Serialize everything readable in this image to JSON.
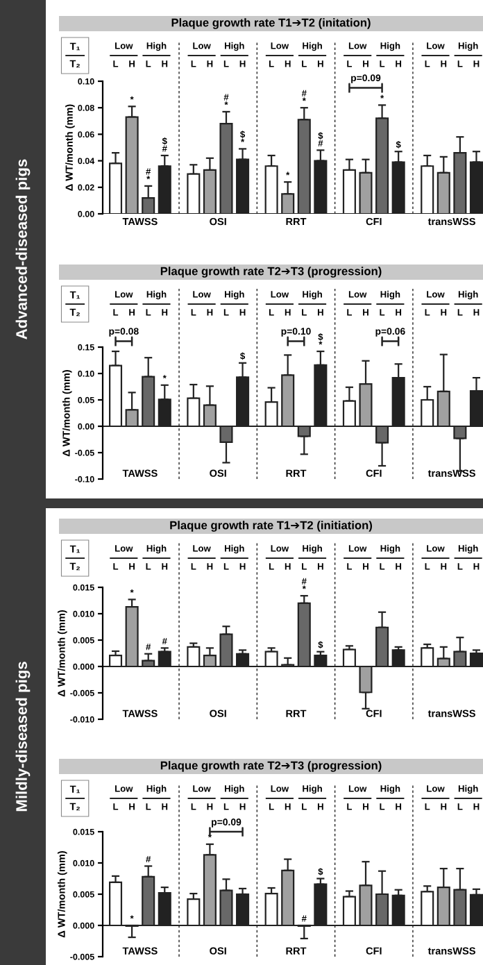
{
  "chart_data": [
    {
      "type": "bar",
      "title": "Plaque growth rate T1➔T2 (initation)",
      "subtitle": "Advanced-diseased pigs",
      "ylabel": "Δ WT/month (mm)",
      "categories": [
        "TAWSS",
        "OSI",
        "RRT",
        "CFI",
        "transWSS"
      ],
      "ylim": [
        0,
        0.1
      ],
      "yticks": [
        {
          "value": 0,
          "label": "0.00"
        },
        {
          "value": 0.02,
          "label": "0.02"
        },
        {
          "value": 0.04,
          "label": "0.04"
        },
        {
          "value": 0.06,
          "label": "0.06"
        },
        {
          "value": 0.08,
          "label": "0.08"
        },
        {
          "value": 0.1,
          "label": "0.10"
        }
      ],
      "series": [
        {
          "color": "#ffffff",
          "values": [
            0.038,
            0.03,
            0.036,
            0.033,
            0.036
          ],
          "errors": [
            [
              0.038,
              0.046
            ],
            [
              0.03,
              0.037
            ],
            [
              0.036,
              0.044
            ],
            [
              0.033,
              0.041
            ],
            [
              0.036,
              0.044
            ]
          ],
          "value_labels": [
            null,
            null,
            null,
            null,
            null
          ]
        },
        {
          "color": "#a0a0a0",
          "values": [
            0.073,
            0.033,
            0.015,
            0.031,
            0.031
          ],
          "errors": [
            [
              0.073,
              0.081
            ],
            [
              0.033,
              0.042
            ],
            [
              0.015,
              0.024
            ],
            [
              0.031,
              0.041
            ],
            [
              0.031,
              0.043
            ]
          ],
          "value_labels": [
            "*",
            null,
            "*",
            null,
            null
          ]
        },
        {
          "color": "#686868",
          "values": [
            0.012,
            0.068,
            0.071,
            0.072,
            0.046
          ],
          "errors": [
            [
              0.012,
              0.021
            ],
            [
              0.068,
              0.077
            ],
            [
              0.071,
              0.08
            ],
            [
              0.072,
              0.082
            ],
            [
              0.046,
              0.058
            ]
          ],
          "value_labels": [
            "#\n*",
            "#\n*",
            "#\n*",
            "*",
            null
          ]
        },
        {
          "color": "#222222",
          "values": [
            0.036,
            0.041,
            0.04,
            0.039,
            0.039
          ],
          "errors": [
            [
              0.036,
              0.044
            ],
            [
              0.041,
              0.049
            ],
            [
              0.04,
              0.048
            ],
            [
              0.039,
              0.047
            ],
            [
              0.039,
              0.047
            ]
          ],
          "value_labels": [
            "$\n#",
            "$\n*",
            "$\n#",
            "$",
            null
          ]
        }
      ],
      "annotations": [
        "T₁",
        "T₂",
        "Low",
        "High",
        "L",
        "H",
        "L",
        "H",
        "Low",
        "High",
        "L",
        "H",
        "L",
        "H",
        "Low",
        "High",
        "L",
        "H",
        "L",
        "H",
        "Low",
        "High",
        "L",
        "H",
        "L",
        "H",
        "Low",
        "High",
        "L",
        "H",
        "L",
        "H",
        "p=0.09"
      ]
    },
    {
      "type": "bar",
      "title": "Plaque growth rate T2➔T3 (progression)",
      "ylabel": "Δ WT/month (mm)",
      "categories": [
        "TAWSS",
        "OSI",
        "RRT",
        "CFI",
        "transWSS"
      ],
      "ylim": [
        -0.1,
        0.15
      ],
      "yticks": [
        {
          "value": -0.1,
          "label": "-0.10"
        },
        {
          "value": -0.05,
          "label": "-0.05"
        },
        {
          "value": 0,
          "label": "0.00"
        },
        {
          "value": 0.05,
          "label": "0.05"
        },
        {
          "value": 0.1,
          "label": "0.10"
        },
        {
          "value": 0.15,
          "label": "0.15"
        }
      ],
      "series": [
        {
          "color": "#ffffff",
          "values": [
            0.115,
            0.053,
            0.046,
            0.048,
            0.05
          ],
          "errors": [
            [
              0.115,
              0.142
            ],
            [
              0.053,
              0.079
            ],
            [
              0.046,
              0.073
            ],
            [
              0.048,
              0.074
            ],
            [
              0.05,
              0.075
            ]
          ],
          "value_labels": [
            null,
            null,
            null,
            null,
            null
          ]
        },
        {
          "color": "#a0a0a0",
          "values": [
            0.031,
            0.04,
            0.097,
            0.08,
            0.066
          ],
          "errors": [
            [
              0.031,
              0.064
            ],
            [
              0.04,
              0.076
            ],
            [
              0.097,
              0.135
            ],
            [
              0.08,
              0.124
            ],
            [
              0.066,
              0.136
            ]
          ],
          "value_labels": [
            null,
            null,
            null,
            null,
            null
          ]
        },
        {
          "color": "#686868",
          "values": [
            0.094,
            -0.03,
            -0.019,
            -0.031,
            -0.023
          ],
          "errors": [
            [
              0.094,
              0.13
            ],
            [
              -0.069,
              -0.03
            ],
            [
              -0.053,
              -0.019
            ],
            [
              -0.075,
              -0.031
            ],
            [
              -0.085,
              -0.023
            ]
          ],
          "value_labels": [
            null,
            null,
            null,
            null,
            null
          ]
        },
        {
          "color": "#222222",
          "values": [
            0.051,
            0.093,
            0.116,
            0.092,
            0.067
          ],
          "errors": [
            [
              0.051,
              0.078
            ],
            [
              0.093,
              0.12
            ],
            [
              0.116,
              0.142
            ],
            [
              0.092,
              0.118
            ],
            [
              0.067,
              0.092
            ]
          ],
          "value_labels": [
            "*",
            "$",
            "$\n*",
            null,
            null
          ]
        }
      ],
      "annotations": [
        "T₁",
        "T₂",
        "Low",
        "High",
        "L",
        "H",
        "L",
        "H",
        "Low",
        "High",
        "L",
        "H",
        "L",
        "H",
        "Low",
        "High",
        "L",
        "H",
        "L",
        "H",
        "Low",
        "High",
        "L",
        "H",
        "L",
        "H",
        "Low",
        "High",
        "L",
        "H",
        "L",
        "H",
        "p=0.08",
        "p=0.10",
        "p=0.06"
      ]
    },
    {
      "type": "bar",
      "title": "Plaque growth rate T1➔T2 (initiation)",
      "subtitle": "Mildly-diseased pigs",
      "ylabel": "Δ WT/month (mm)",
      "categories": [
        "TAWSS",
        "OSI",
        "RRT",
        "CFI",
        "transWSS"
      ],
      "ylim": [
        -0.01,
        0.015
      ],
      "yticks": [
        {
          "value": -0.01,
          "label": "-0.010"
        },
        {
          "value": -0.005,
          "label": "-0.005"
        },
        {
          "value": 0,
          "label": "0.000"
        },
        {
          "value": 0.005,
          "label": "0.005"
        },
        {
          "value": 0.01,
          "label": "0.010"
        },
        {
          "value": 0.015,
          "label": "0.015"
        }
      ],
      "series": [
        {
          "color": "#ffffff",
          "values": [
            0.0021,
            0.0037,
            0.0028,
            0.0032,
            0.0035
          ],
          "errors": [
            [
              0.0021,
              0.0029
            ],
            [
              0.0037,
              0.0044
            ],
            [
              0.0028,
              0.0035
            ],
            [
              0.0032,
              0.0039
            ],
            [
              0.0035,
              0.0042
            ]
          ],
          "value_labels": [
            null,
            null,
            null,
            null,
            null
          ]
        },
        {
          "color": "#a0a0a0",
          "values": [
            0.0113,
            0.0021,
            0.0003,
            -0.0049,
            0.0015
          ],
          "errors": [
            [
              0.0113,
              0.0127
            ],
            [
              0.0021,
              0.0035
            ],
            [
              0.0003,
              0.0016
            ],
            [
              -0.008,
              -0.0049
            ],
            [
              0.0015,
              0.0037
            ]
          ],
          "value_labels": [
            "*",
            null,
            null,
            null,
            null
          ]
        },
        {
          "color": "#686868",
          "values": [
            0.0011,
            0.0061,
            0.012,
            0.0074,
            0.0028
          ],
          "errors": [
            [
              0.0011,
              0.0024
            ],
            [
              0.0061,
              0.0076
            ],
            [
              0.012,
              0.0134
            ],
            [
              0.0074,
              0.0103
            ],
            [
              0.0028,
              0.0055
            ]
          ],
          "value_labels": [
            "#",
            null,
            "#\n*",
            null,
            null
          ]
        },
        {
          "color": "#222222",
          "values": [
            0.0028,
            0.0024,
            0.0021,
            0.0031,
            0.0025
          ],
          "errors": [
            [
              0.0028,
              0.0035
            ],
            [
              0.0024,
              0.0031
            ],
            [
              0.0021,
              0.0028
            ],
            [
              0.0031,
              0.0037
            ],
            [
              0.0025,
              0.0031
            ]
          ],
          "value_labels": [
            "#",
            null,
            "$",
            null,
            null
          ]
        }
      ],
      "annotations": [
        "T₁",
        "T₂",
        "Low",
        "High",
        "L",
        "H",
        "L",
        "H",
        "Low",
        "High",
        "L",
        "H",
        "L",
        "H",
        "Low",
        "High",
        "L",
        "H",
        "L",
        "H",
        "Low",
        "High",
        "L",
        "H",
        "L",
        "H",
        "Low",
        "High",
        "L",
        "H",
        "L",
        "H"
      ]
    },
    {
      "type": "bar",
      "title": "Plaque growth rate T2➔T3 (progression)",
      "ylabel": "Δ WT/month (mm)",
      "categories": [
        "TAWSS",
        "OSI",
        "RRT",
        "CFI",
        "transWSS"
      ],
      "ylim": [
        -0.005,
        0.015
      ],
      "yticks": [
        {
          "value": -0.005,
          "label": "-0.005"
        },
        {
          "value": 0,
          "label": "0.000"
        },
        {
          "value": 0.005,
          "label": "0.005"
        },
        {
          "value": 0.01,
          "label": "0.010"
        },
        {
          "value": 0.015,
          "label": "0.015"
        }
      ],
      "series": [
        {
          "color": "#ffffff",
          "values": [
            0.0069,
            0.0042,
            0.0051,
            0.0046,
            0.0054
          ],
          "errors": [
            [
              0.0069,
              0.0079
            ],
            [
              0.0042,
              0.0051
            ],
            [
              0.0051,
              0.006
            ],
            [
              0.0046,
              0.0055
            ],
            [
              0.0054,
              0.0063
            ]
          ],
          "value_labels": [
            null,
            null,
            null,
            null,
            null
          ]
        },
        {
          "color": "#a0a0a0",
          "values": [
            -0.0001,
            0.0113,
            0.0088,
            0.0064,
            0.0061
          ],
          "errors": [
            [
              -0.0019,
              -0.0001
            ],
            [
              0.0113,
              0.013
            ],
            [
              0.0088,
              0.0106
            ],
            [
              0.0064,
              0.0102
            ],
            [
              0.0061,
              0.0091
            ]
          ],
          "value_labels": [
            "*",
            "*",
            null,
            null,
            null
          ]
        },
        {
          "color": "#686868",
          "values": [
            0.0078,
            0.0056,
            -0.0001,
            0.005,
            0.0057
          ],
          "errors": [
            [
              0.0078,
              0.0095
            ],
            [
              0.0056,
              0.0074
            ],
            [
              -0.0021,
              -0.0001
            ],
            [
              0.005,
              0.0087
            ],
            [
              0.0057,
              0.0091
            ]
          ],
          "value_labels": [
            "#",
            null,
            "#",
            null,
            null
          ]
        },
        {
          "color": "#222222",
          "values": [
            0.0052,
            0.005,
            0.0066,
            0.0048,
            0.0049
          ],
          "errors": [
            [
              0.0052,
              0.0061
            ],
            [
              0.005,
              0.0059
            ],
            [
              0.0066,
              0.0075
            ],
            [
              0.0048,
              0.0057
            ],
            [
              0.0049,
              0.0058
            ]
          ],
          "value_labels": [
            null,
            null,
            "$",
            null,
            null
          ]
        }
      ],
      "annotations": [
        "T₁",
        "T₂",
        "Low",
        "High",
        "L",
        "H",
        "L",
        "H",
        "Low",
        "High",
        "L",
        "H",
        "L",
        "H",
        "Low",
        "High",
        "L",
        "H",
        "L",
        "H",
        "Low",
        "High",
        "L",
        "H",
        "L",
        "H",
        "Low",
        "High",
        "L",
        "H",
        "L",
        "H",
        "p=0.09"
      ]
    }
  ]
}
